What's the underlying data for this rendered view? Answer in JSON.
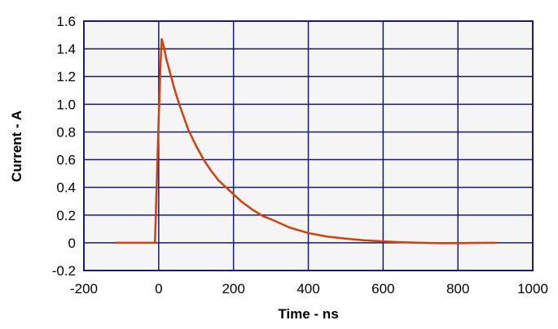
{
  "colors": {
    "plot_background": "#f5f5f5",
    "grid": "#1a1a6e",
    "axis_frame": "#1a1a6e",
    "series_line": "#d2400c"
  },
  "chart_data": {
    "type": "line",
    "title": "",
    "xlabel": "Time - ns",
    "ylabel": "Current - A",
    "xlim": [
      -200,
      1000
    ],
    "ylim": [
      -0.2,
      1.6
    ],
    "xticks": [
      -200,
      0,
      200,
      400,
      600,
      800,
      1000
    ],
    "xtick_labels": [
      "-200",
      "0",
      "200",
      "400",
      "600",
      "800",
      "1000"
    ],
    "yticks": [
      -0.2,
      0,
      0.2,
      0.4,
      0.6,
      0.8,
      1.0,
      1.2,
      1.4,
      1.6
    ],
    "ytick_labels": [
      "-0.2",
      "0",
      "0.2",
      "0.4",
      "0.6",
      "0.8",
      "1.0",
      "1.2",
      "1.4",
      "1.6"
    ],
    "grid": true,
    "legend": "none",
    "series": [
      {
        "x": [
          -115,
          -10,
          -5,
          0,
          5,
          8,
          10,
          15,
          20,
          30,
          40,
          50,
          60,
          80,
          100,
          120,
          140,
          160,
          180,
          200,
          220,
          250,
          280,
          300,
          350,
          400,
          450,
          500,
          550,
          600,
          650,
          700,
          750,
          800,
          850,
          900
        ],
        "y": [
          0.0,
          0.0,
          0.45,
          0.9,
          1.3,
          1.47,
          1.45,
          1.4,
          1.33,
          1.23,
          1.13,
          1.04,
          0.96,
          0.81,
          0.7,
          0.6,
          0.52,
          0.45,
          0.4,
          0.35,
          0.3,
          0.24,
          0.19,
          0.17,
          0.11,
          0.07,
          0.045,
          0.03,
          0.018,
          0.01,
          0.004,
          0.0,
          -0.003,
          -0.003,
          -0.001,
          0.0
        ]
      }
    ]
  }
}
